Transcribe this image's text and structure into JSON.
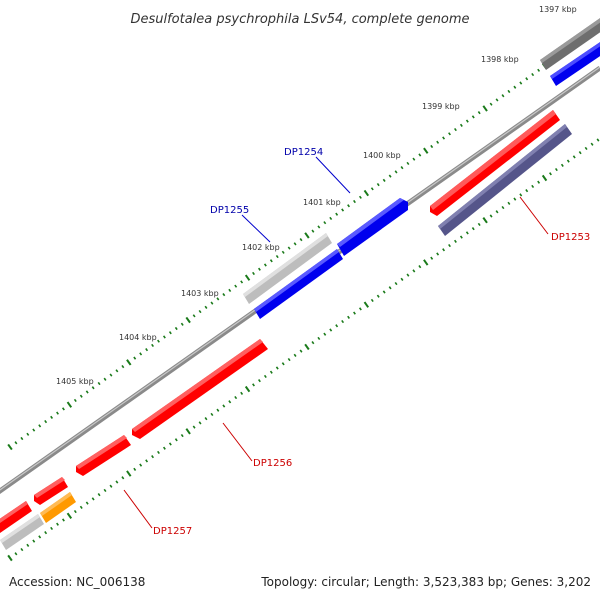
{
  "title": "Desulfotalea psychrophila LSv54, complete genome",
  "footer": {
    "accession": "Accession: NC_006138",
    "summary": "Topology: circular; Length: 3,523,383 bp; Genes: 3,202"
  },
  "colors": {
    "backbone": "#8a8a8a",
    "tick": "#1a7a1a",
    "forward_gene": "#ff0000",
    "reverse_gene": "#0000ee",
    "gray_gene": "#c4c4c4",
    "dark_gray_gene": "#707070",
    "slate_gene": "#55558a",
    "orange_gene": "#ff9900",
    "label_blue": "#0000aa",
    "label_red": "#cc0000"
  },
  "ticks": [
    {
      "label": "1397 kbp"
    },
    {
      "label": "1398 kbp"
    },
    {
      "label": "1399 kbp"
    },
    {
      "label": "1400 kbp"
    },
    {
      "label": "1401 kbp"
    },
    {
      "label": "1402 kbp"
    },
    {
      "label": "1403 kbp"
    },
    {
      "label": "1404 kbp"
    },
    {
      "label": "1405 kbp"
    }
  ],
  "gene_labels": [
    {
      "name": "DP1254"
    },
    {
      "name": "DP1255"
    },
    {
      "name": "DP1253"
    },
    {
      "name": "DP1256"
    },
    {
      "name": "DP1257"
    }
  ]
}
